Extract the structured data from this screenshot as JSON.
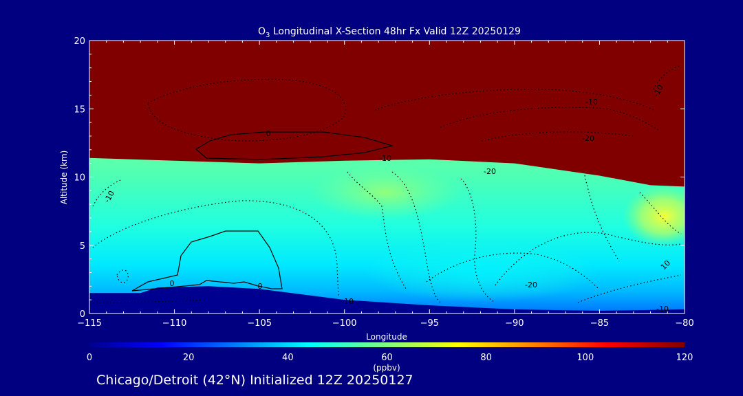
{
  "chart_data": {
    "type": "heatmap",
    "title": "O3 Longitudinal X-Section 48hr  Fx Valid 12Z 20250129",
    "title_parts": {
      "pre": "O",
      "sub": "3",
      "post": " Longitudinal X-Section 48hr  Fx Valid 12Z 20250129"
    },
    "xlabel": "Longitude",
    "ylabel": "Altitude (km)",
    "xlim": [
      -115,
      -80
    ],
    "ylim": [
      0,
      20
    ],
    "x_ticks": [
      -115,
      -110,
      -105,
      -100,
      -95,
      -90,
      -85,
      -80
    ],
    "x_tick_labels": [
      "−115",
      "−110",
      "−105",
      "−100",
      "−95",
      "−90",
      "−85",
      "−80"
    ],
    "y_ticks": [
      0,
      5,
      10,
      15,
      20
    ],
    "y_tick_labels": [
      "0",
      "5",
      "10",
      "15",
      "20"
    ],
    "colorbar": {
      "label": "(ppbv)",
      "range": [
        0,
        120
      ],
      "ticks": [
        0,
        20,
        40,
        60,
        80,
        100,
        120
      ],
      "tick_labels": [
        "0",
        "20",
        "40",
        "60",
        "80",
        "100",
        "120"
      ]
    },
    "fields": {
      "tropopause_altitude_km": [
        {
          "lon": -115,
          "alt": 11.4
        },
        {
          "lon": -110,
          "alt": 11.2
        },
        {
          "lon": -105,
          "alt": 11.0
        },
        {
          "lon": -100,
          "alt": 11.2
        },
        {
          "lon": -95,
          "alt": 11.3
        },
        {
          "lon": -90,
          "alt": 11.0
        },
        {
          "lon": -85,
          "alt": 10.1
        },
        {
          "lon": -82,
          "alt": 9.4
        },
        {
          "lon": -80,
          "alt": 9.3
        }
      ],
      "terrain_altitude_km": [
        {
          "lon": -115,
          "alt": 1.5
        },
        {
          "lon": -112,
          "alt": 1.5
        },
        {
          "lon": -111,
          "alt": 1.9
        },
        {
          "lon": -108,
          "alt": 2.0
        },
        {
          "lon": -105,
          "alt": 1.8
        },
        {
          "lon": -100,
          "alt": 1.0
        },
        {
          "lon": -95,
          "alt": 0.6
        },
        {
          "lon": -90,
          "alt": 0.3
        },
        {
          "lon": -85,
          "alt": 0.2
        },
        {
          "lon": -80,
          "alt": 0.3
        }
      ]
    },
    "contour_labels": [
      "0",
      "0",
      "0",
      "-10",
      "-10",
      "-10",
      "-10",
      "-10",
      "-20",
      "-20",
      "-20",
      "10",
      "-10"
    ]
  },
  "caption": "Chicago/Detroit (42°N) Initialized 12Z 20250127",
  "colors": {
    "background": "#000080",
    "stratosphere": "#800000",
    "terrain": "#000090",
    "colormap": [
      "#00008f",
      "#0000ff",
      "#0080ff",
      "#00ffff",
      "#80ff80",
      "#ffff00",
      "#ff8000",
      "#ff0000",
      "#800000"
    ]
  }
}
